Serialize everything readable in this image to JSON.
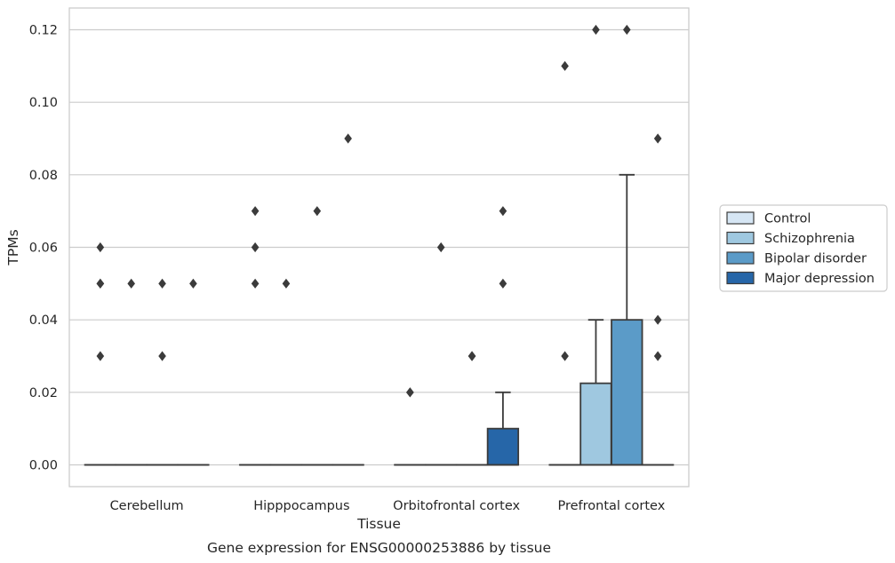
{
  "chart_data": {
    "type": "box",
    "title": "",
    "caption": "Gene expression for ENSG00000253886 by tissue",
    "xlabel": "Tissue",
    "ylabel": "TPMs",
    "ylim": [
      -0.006,
      0.126
    ],
    "yticks": [
      0.0,
      0.02,
      0.04,
      0.06,
      0.08,
      0.1,
      0.12
    ],
    "ytick_labels": [
      "0.00",
      "0.02",
      "0.04",
      "0.06",
      "0.08",
      "0.10",
      "0.12"
    ],
    "grid": "horizontal",
    "legend_position": "right",
    "categories": [
      "Cerebellum",
      "Hipppocampus",
      "Orbitofrontal cortex",
      "Prefrontal cortex"
    ],
    "series": [
      {
        "name": "Control",
        "color": "#d6e6f4",
        "boxes": [
          {
            "q1": 0,
            "median": 0,
            "q3": 0,
            "whislo": 0,
            "whishi": 0,
            "fliers": [
              0.03,
              0.05,
              0.05,
              0.06
            ]
          },
          {
            "q1": 0,
            "median": 0,
            "q3": 0,
            "whislo": 0,
            "whishi": 0,
            "fliers": [
              0.05,
              0.06,
              0.07
            ]
          },
          {
            "q1": 0,
            "median": 0,
            "q3": 0,
            "whislo": 0,
            "whishi": 0,
            "fliers": [
              0.02,
              0.02
            ]
          },
          {
            "q1": 0,
            "median": 0,
            "q3": 0,
            "whislo": 0,
            "whishi": 0,
            "fliers": [
              0.03,
              0.11
            ]
          }
        ]
      },
      {
        "name": "Schizophrenia",
        "color": "#9fc8e0",
        "boxes": [
          {
            "q1": 0,
            "median": 0,
            "q3": 0,
            "whislo": 0,
            "whishi": 0,
            "fliers": [
              0.05
            ]
          },
          {
            "q1": 0,
            "median": 0,
            "q3": 0,
            "whislo": 0,
            "whishi": 0,
            "fliers": [
              0.05
            ]
          },
          {
            "q1": 0,
            "median": 0,
            "q3": 0,
            "whislo": 0,
            "whishi": 0,
            "fliers": [
              0.06
            ]
          },
          {
            "q1": 0,
            "median": 0,
            "q3": 0.0225,
            "whislo": 0,
            "whishi": 0.04,
            "fliers": [
              0.12
            ]
          }
        ]
      },
      {
        "name": "Bipolar disorder",
        "color": "#5b9bc8",
        "boxes": [
          {
            "q1": 0,
            "median": 0,
            "q3": 0,
            "whislo": 0,
            "whishi": 0,
            "fliers": [
              0.03,
              0.05
            ]
          },
          {
            "q1": 0,
            "median": 0,
            "q3": 0,
            "whislo": 0,
            "whishi": 0,
            "fliers": [
              0.07
            ]
          },
          {
            "q1": 0,
            "median": 0,
            "q3": 0,
            "whislo": 0,
            "whishi": 0,
            "fliers": [
              0.03,
              0.03
            ]
          },
          {
            "q1": 0,
            "median": 0,
            "q3": 0.04,
            "whislo": 0,
            "whishi": 0.08,
            "fliers": [
              0.12
            ]
          }
        ]
      },
      {
        "name": "Major depression",
        "color": "#2666a8",
        "boxes": [
          {
            "q1": 0,
            "median": 0,
            "q3": 0,
            "whislo": 0,
            "whishi": 0,
            "fliers": [
              0.05
            ]
          },
          {
            "q1": 0,
            "median": 0,
            "q3": 0,
            "whislo": 0,
            "whishi": 0,
            "fliers": [
              0.09
            ]
          },
          {
            "q1": 0,
            "median": 0,
            "q3": 0.01,
            "whislo": 0,
            "whishi": 0.02,
            "fliers": [
              0.05,
              0.07
            ]
          },
          {
            "q1": 0,
            "median": 0,
            "q3": 0,
            "whislo": 0,
            "whishi": 0,
            "fliers": [
              0.03,
              0.04,
              0.09
            ]
          }
        ]
      }
    ]
  }
}
